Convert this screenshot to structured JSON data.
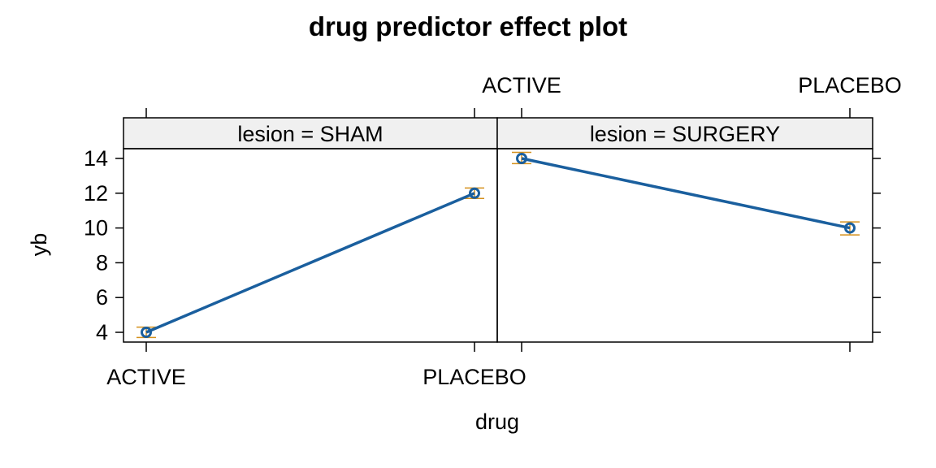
{
  "colors": {
    "line": "#1a5f9e",
    "errorbar": "#d4901c",
    "strip_bg": "#f0f0f0",
    "frame": "#000000"
  },
  "chart_data": {
    "type": "line",
    "title": "drug predictor effect plot",
    "xlabel": "drug",
    "ylabel": "yb",
    "categories": [
      "ACTIVE",
      "PLACEBO"
    ],
    "ylim": [
      3.4,
      14.6
    ],
    "yticks": [
      "4",
      "6",
      "8",
      "10",
      "12",
      "14"
    ],
    "grid": false,
    "panels": [
      {
        "strip": "lesion = SHAM",
        "values": [
          4,
          12
        ],
        "lower": [
          3.7,
          11.7
        ],
        "upper": [
          4.3,
          12.3
        ]
      },
      {
        "strip": "lesion = SURGERY",
        "values": [
          14,
          10
        ],
        "lower": [
          13.7,
          9.6
        ],
        "upper": [
          14.35,
          10.35
        ]
      }
    ]
  }
}
